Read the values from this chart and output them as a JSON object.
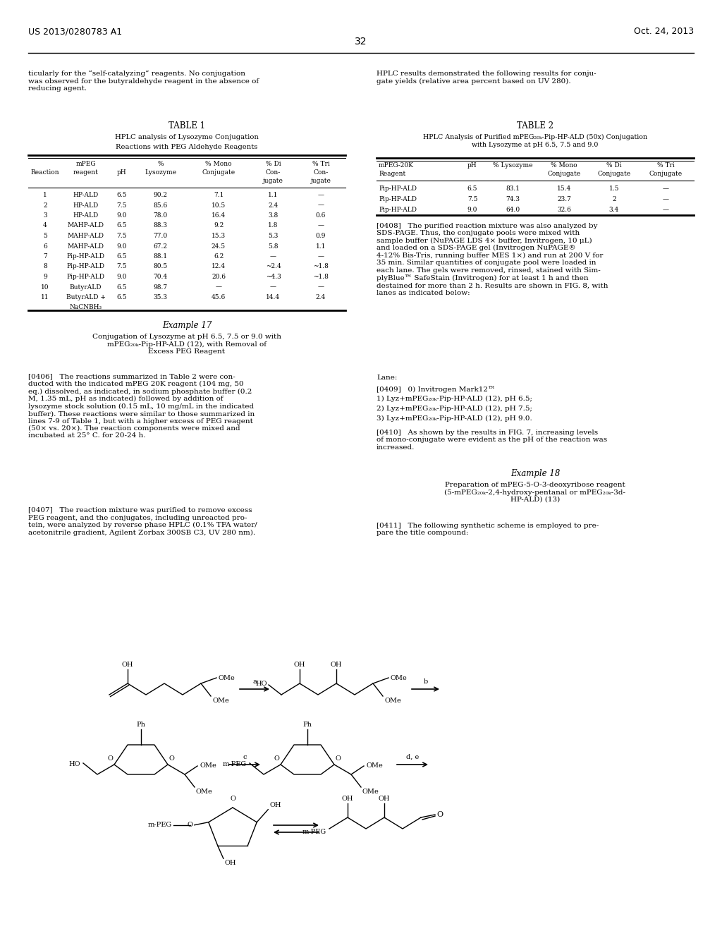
{
  "page_number": "32",
  "patent_left": "US 2013/0280783 A1",
  "patent_right": "Oct. 24, 2013",
  "left_para1": "ticularly for the “self-catalyzing” reagents. No conjugation\nwas observed for the butyraldehyde reagent in the absence of\nreducing agent.",
  "right_para1": "HPLC results demonstrated the following results for conju-\ngate yields (relative area percent based on UV 280).",
  "table1_title": "TABLE 1",
  "table1_sub1": "HPLC analysis of Lysozyme Conjugation",
  "table1_sub2": "Reactions with PEG Aldehyde Reagents",
  "table1_data": [
    [
      "1",
      "HP-ALD",
      "6.5",
      "90.2",
      "7.1",
      "1.1",
      "—"
    ],
    [
      "2",
      "HP-ALD",
      "7.5",
      "85.6",
      "10.5",
      "2.4",
      "—"
    ],
    [
      "3",
      "HP-ALD",
      "9.0",
      "78.0",
      "16.4",
      "3.8",
      "0.6"
    ],
    [
      "4",
      "MAHP-ALD",
      "6.5",
      "88.3",
      "9.2",
      "1.8",
      "—"
    ],
    [
      "5",
      "MAHP-ALD",
      "7.5",
      "77.0",
      "15.3",
      "5.3",
      "0.9"
    ],
    [
      "6",
      "MAHP-ALD",
      "9.0",
      "67.2",
      "24.5",
      "5.8",
      "1.1"
    ],
    [
      "7",
      "Pip-HP-ALD",
      "6.5",
      "88.1",
      "6.2",
      "—",
      "—"
    ],
    [
      "8",
      "Pip-HP-ALD",
      "7.5",
      "80.5",
      "12.4",
      "~2.4",
      "~1.8"
    ],
    [
      "9",
      "Pip-HP-ALD",
      "9.0",
      "70.4",
      "20.6",
      "~4.3",
      "~1.8"
    ],
    [
      "10",
      "ButyrALD",
      "6.5",
      "98.7",
      "—",
      "—",
      "—"
    ],
    [
      "11",
      "ButyrALD +",
      "6.5",
      "35.3",
      "45.6",
      "14.4",
      "2.4"
    ],
    [
      "",
      "NaCNBH₃",
      "",
      "",
      "",
      "",
      ""
    ]
  ],
  "table2_title": "TABLE 2",
  "table2_sub": "HPLC Analysis of Purified mPEG₂₀ₖ-Pip-HP-ALD (50x) Conjugation\nwith Lysozyme at pH 6.5, 7.5 and 9.0",
  "table2_data": [
    [
      "Pip-HP-ALD",
      "6.5",
      "83.1",
      "15.4",
      "1.5",
      "—"
    ],
    [
      "Pip-HP-ALD",
      "7.5",
      "74.3",
      "23.7",
      "2",
      "—"
    ],
    [
      "Pip-HP-ALD",
      "9.0",
      "64.0",
      "32.6",
      "3.4",
      "—"
    ]
  ],
  "example17_title": "Example 17",
  "example17_sub": "Conjugation of Lysozyme at pH 6.5, 7.5 or 9.0 with\nmPEG₂₀ₖ-Pip-HP-ALD (12), with Removal of\nExcess PEG Reagent",
  "para0406": "[0406]   The reactions summarized in Table 2 were con-\nducted with the indicated mPEG 20K reagent (104 mg, 50\neq.) dissolved, as indicated, in sodium phosphate buffer (0.2\nM, 1.35 mL, pH as indicated) followed by addition of\nlysozyme stock solution (0.15 mL, 10 mg/mL in the indicated\nbuffer). These reactions were similar to those summarized in\nlines 7-9 of Table 1, but with a higher excess of PEG reagent\n(50× vs. 20×). The reaction components were mixed and\nincubated at 25° C. for 20-24 h.",
  "para0407": "[0407]   The reaction mixture was purified to remove excess\nPEG reagent, and the conjugates, including unreacted pro-\ntein, were analyzed by reverse phase HPLC (0.1% TFA water/\nacetonitrile gradient, Agilent Zorbax 300SB C3, UV 280 nm).",
  "para0408": "[0408]   The purified reaction mixture was also analyzed by\nSDS-PAGE. Thus, the conjugate pools were mixed with\nsample buffer (NuPAGE LDS 4× buffer, Invitrogen, 10 μL)\nand loaded on a SDS-PAGE gel (Invitrogen NuPAGE®\n4-12% Bis-Tris, running buffer MES 1×) and run at 200 V for\n35 min. Similar quantities of conjugate pool were loaded in\neach lane. The gels were removed, rinsed, stained with Sim-\nplyBlue™ SafeStain (Invitrogen) for at least 1 h and then\ndestained for more than 2 h. Results are shown in FIG. 8, with\nlanes as indicated below:",
  "lane_header": "Lane:",
  "para0409_line0": "[0409]   0) Invitrogen Mark12™",
  "para0409_line1": "1) Lyz+mPEG₂₀ₖ-Pip-HP-ALD (12), pH 6.5;",
  "para0409_line2": "2) Lyz+mPEG₂₀ₖ-Pip-HP-ALD (12), pH 7.5;",
  "para0409_line3": "3) Lyz+mPEG₂₀ₖ-Pip-HP-ALD (12), pH 9.0.",
  "para0410": "[0410]   As shown by the results in FIG. 7, increasing levels\nof mono-conjugate were evident as the pH of the reaction was\nincreased.",
  "example18_title": "Example 18",
  "example18_sub": "Preparation of mPEG-5-O-3-deoxyribose reagent\n(5-mPEG₂₀ₖ-2,4-hydroxy-pentanal or mPEG₂₀ₖ-3d-\nHP-ALD) (13)",
  "para0411": "[0411]   The following synthetic scheme is employed to pre-\npare the title compound:"
}
